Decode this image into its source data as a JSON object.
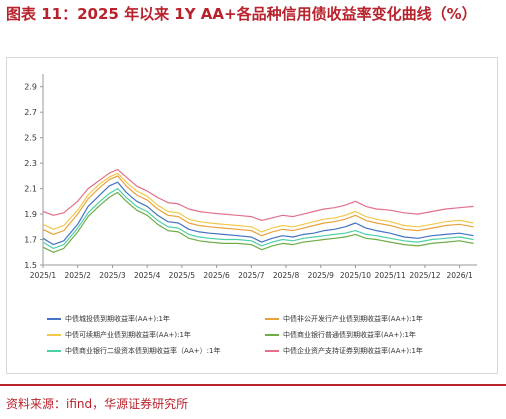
{
  "title": "图表 11：2025 年以来 1Y AA+各品种信用债收益率变化曲线（%）",
  "source": "资料来源：ifind，华源证券研究所",
  "chart_data": {
    "type": "line",
    "ylim": [
      1.5,
      3.0
    ],
    "yticks": [
      "1.5",
      "1.7",
      "1.9",
      "2.1",
      "2.3",
      "2.5",
      "2.7",
      "2.9"
    ],
    "xticks": [
      "2025/1",
      "2025/2",
      "2025/3",
      "2025/4",
      "2025/5",
      "2025/6",
      "2025/7",
      "2025/8",
      "2025/9",
      "2025/10",
      "2025/11",
      "2025/12",
      "2026/1"
    ],
    "x_range_months": [
      0,
      12.5
    ],
    "grid": false,
    "legend_position": "bottom",
    "series": [
      {
        "name": "中债城投债到期收益率(AA+):1年",
        "color": "#4472c4",
        "points": [
          [
            0,
            1.71
          ],
          [
            0.3,
            1.66
          ],
          [
            0.6,
            1.69
          ],
          [
            1.0,
            1.82
          ],
          [
            1.3,
            1.96
          ],
          [
            1.6,
            2.04
          ],
          [
            1.9,
            2.12
          ],
          [
            2.15,
            2.15
          ],
          [
            2.4,
            2.07
          ],
          [
            2.7,
            2.0
          ],
          [
            3.0,
            1.96
          ],
          [
            3.3,
            1.89
          ],
          [
            3.6,
            1.84
          ],
          [
            3.9,
            1.83
          ],
          [
            4.2,
            1.78
          ],
          [
            4.5,
            1.76
          ],
          [
            4.8,
            1.75
          ],
          [
            5.2,
            1.74
          ],
          [
            5.6,
            1.73
          ],
          [
            6.0,
            1.72
          ],
          [
            6.3,
            1.68
          ],
          [
            6.6,
            1.71
          ],
          [
            6.9,
            1.73
          ],
          [
            7.2,
            1.72
          ],
          [
            7.5,
            1.74
          ],
          [
            7.8,
            1.75
          ],
          [
            8.1,
            1.77
          ],
          [
            8.4,
            1.78
          ],
          [
            8.7,
            1.8
          ],
          [
            9.0,
            1.83
          ],
          [
            9.3,
            1.79
          ],
          [
            9.6,
            1.77
          ],
          [
            10.0,
            1.75
          ],
          [
            10.4,
            1.72
          ],
          [
            10.8,
            1.71
          ],
          [
            11.2,
            1.73
          ],
          [
            11.6,
            1.74
          ],
          [
            12.0,
            1.75
          ],
          [
            12.4,
            1.73
          ]
        ]
      },
      {
        "name": "中债非公开发行产业债到期收益率(AA+):1年",
        "color": "#e8a33c",
        "points": [
          [
            0,
            1.78
          ],
          [
            0.3,
            1.74
          ],
          [
            0.6,
            1.77
          ],
          [
            1.0,
            1.9
          ],
          [
            1.3,
            2.02
          ],
          [
            1.6,
            2.1
          ],
          [
            1.9,
            2.17
          ],
          [
            2.15,
            2.2
          ],
          [
            2.4,
            2.12
          ],
          [
            2.7,
            2.05
          ],
          [
            3.0,
            2.01
          ],
          [
            3.3,
            1.94
          ],
          [
            3.6,
            1.89
          ],
          [
            3.9,
            1.88
          ],
          [
            4.2,
            1.83
          ],
          [
            4.5,
            1.81
          ],
          [
            4.8,
            1.8
          ],
          [
            5.2,
            1.79
          ],
          [
            5.6,
            1.78
          ],
          [
            6.0,
            1.77
          ],
          [
            6.3,
            1.73
          ],
          [
            6.6,
            1.76
          ],
          [
            6.9,
            1.78
          ],
          [
            7.2,
            1.77
          ],
          [
            7.5,
            1.79
          ],
          [
            7.8,
            1.81
          ],
          [
            8.1,
            1.83
          ],
          [
            8.4,
            1.84
          ],
          [
            8.7,
            1.86
          ],
          [
            9.0,
            1.89
          ],
          [
            9.3,
            1.85
          ],
          [
            9.6,
            1.83
          ],
          [
            10.0,
            1.81
          ],
          [
            10.4,
            1.78
          ],
          [
            10.8,
            1.77
          ],
          [
            11.2,
            1.79
          ],
          [
            11.6,
            1.81
          ],
          [
            12.0,
            1.82
          ],
          [
            12.4,
            1.8
          ]
        ]
      },
      {
        "name": "中债可续期产业债到期收益率(AA+):1年",
        "color": "#f2c94c",
        "points": [
          [
            0,
            1.82
          ],
          [
            0.3,
            1.78
          ],
          [
            0.6,
            1.81
          ],
          [
            1.0,
            1.93
          ],
          [
            1.3,
            2.05
          ],
          [
            1.6,
            2.13
          ],
          [
            1.9,
            2.19
          ],
          [
            2.15,
            2.22
          ],
          [
            2.4,
            2.15
          ],
          [
            2.7,
            2.08
          ],
          [
            3.0,
            2.04
          ],
          [
            3.3,
            1.97
          ],
          [
            3.6,
            1.92
          ],
          [
            3.9,
            1.91
          ],
          [
            4.2,
            1.86
          ],
          [
            4.5,
            1.84
          ],
          [
            4.8,
            1.83
          ],
          [
            5.2,
            1.82
          ],
          [
            5.6,
            1.81
          ],
          [
            6.0,
            1.8
          ],
          [
            6.3,
            1.76
          ],
          [
            6.6,
            1.79
          ],
          [
            6.9,
            1.81
          ],
          [
            7.2,
            1.8
          ],
          [
            7.5,
            1.82
          ],
          [
            7.8,
            1.84
          ],
          [
            8.1,
            1.86
          ],
          [
            8.4,
            1.87
          ],
          [
            8.7,
            1.89
          ],
          [
            9.0,
            1.92
          ],
          [
            9.3,
            1.88
          ],
          [
            9.6,
            1.86
          ],
          [
            10.0,
            1.84
          ],
          [
            10.4,
            1.81
          ],
          [
            10.8,
            1.8
          ],
          [
            11.2,
            1.82
          ],
          [
            11.6,
            1.84
          ],
          [
            12.0,
            1.85
          ],
          [
            12.4,
            1.83
          ]
        ]
      },
      {
        "name": "中债商业银行普通债到期收益率(AA+):1年",
        "color": "#70ad47",
        "points": [
          [
            0,
            1.64
          ],
          [
            0.3,
            1.6
          ],
          [
            0.6,
            1.63
          ],
          [
            1.0,
            1.76
          ],
          [
            1.3,
            1.88
          ],
          [
            1.6,
            1.96
          ],
          [
            1.9,
            2.03
          ],
          [
            2.15,
            2.07
          ],
          [
            2.4,
            2.0
          ],
          [
            2.7,
            1.93
          ],
          [
            3.0,
            1.89
          ],
          [
            3.3,
            1.82
          ],
          [
            3.6,
            1.77
          ],
          [
            3.9,
            1.76
          ],
          [
            4.2,
            1.71
          ],
          [
            4.5,
            1.69
          ],
          [
            4.8,
            1.68
          ],
          [
            5.2,
            1.67
          ],
          [
            5.6,
            1.67
          ],
          [
            6.0,
            1.66
          ],
          [
            6.3,
            1.62
          ],
          [
            6.6,
            1.65
          ],
          [
            6.9,
            1.67
          ],
          [
            7.2,
            1.66
          ],
          [
            7.5,
            1.68
          ],
          [
            7.8,
            1.69
          ],
          [
            8.1,
            1.7
          ],
          [
            8.4,
            1.71
          ],
          [
            8.7,
            1.72
          ],
          [
            9.0,
            1.74
          ],
          [
            9.3,
            1.71
          ],
          [
            9.6,
            1.7
          ],
          [
            10.0,
            1.68
          ],
          [
            10.4,
            1.66
          ],
          [
            10.8,
            1.65
          ],
          [
            11.2,
            1.67
          ],
          [
            11.6,
            1.68
          ],
          [
            12.0,
            1.69
          ],
          [
            12.4,
            1.67
          ]
        ]
      },
      {
        "name": "中债商业银行二级资本债到期收益率（AA+）:1年",
        "color": "#4dd0a8",
        "points": [
          [
            0,
            1.68
          ],
          [
            0.3,
            1.63
          ],
          [
            0.6,
            1.66
          ],
          [
            1.0,
            1.79
          ],
          [
            1.3,
            1.91
          ],
          [
            1.6,
            1.99
          ],
          [
            1.9,
            2.06
          ],
          [
            2.15,
            2.1
          ],
          [
            2.4,
            2.03
          ],
          [
            2.7,
            1.96
          ],
          [
            3.0,
            1.92
          ],
          [
            3.3,
            1.85
          ],
          [
            3.6,
            1.8
          ],
          [
            3.9,
            1.79
          ],
          [
            4.2,
            1.74
          ],
          [
            4.5,
            1.72
          ],
          [
            4.8,
            1.71
          ],
          [
            5.2,
            1.7
          ],
          [
            5.6,
            1.7
          ],
          [
            6.0,
            1.69
          ],
          [
            6.3,
            1.65
          ],
          [
            6.6,
            1.68
          ],
          [
            6.9,
            1.7
          ],
          [
            7.2,
            1.69
          ],
          [
            7.5,
            1.71
          ],
          [
            7.8,
            1.72
          ],
          [
            8.1,
            1.73
          ],
          [
            8.4,
            1.74
          ],
          [
            8.7,
            1.75
          ],
          [
            9.0,
            1.77
          ],
          [
            9.3,
            1.74
          ],
          [
            9.6,
            1.73
          ],
          [
            10.0,
            1.71
          ],
          [
            10.4,
            1.69
          ],
          [
            10.8,
            1.68
          ],
          [
            11.2,
            1.7
          ],
          [
            11.6,
            1.71
          ],
          [
            12.0,
            1.72
          ],
          [
            12.4,
            1.7
          ]
        ]
      },
      {
        "name": "中债企业资产支持证券到期收益率(AA+):1年",
        "color": "#e2708a",
        "points": [
          [
            0,
            1.92
          ],
          [
            0.3,
            1.89
          ],
          [
            0.6,
            1.91
          ],
          [
            1.0,
            2.0
          ],
          [
            1.3,
            2.1
          ],
          [
            1.6,
            2.16
          ],
          [
            1.9,
            2.22
          ],
          [
            2.15,
            2.25
          ],
          [
            2.4,
            2.19
          ],
          [
            2.7,
            2.12
          ],
          [
            3.0,
            2.08
          ],
          [
            3.3,
            2.03
          ],
          [
            3.6,
            1.99
          ],
          [
            3.9,
            1.98
          ],
          [
            4.2,
            1.94
          ],
          [
            4.5,
            1.92
          ],
          [
            4.8,
            1.91
          ],
          [
            5.2,
            1.9
          ],
          [
            5.6,
            1.89
          ],
          [
            6.0,
            1.88
          ],
          [
            6.3,
            1.85
          ],
          [
            6.6,
            1.87
          ],
          [
            6.9,
            1.89
          ],
          [
            7.2,
            1.88
          ],
          [
            7.5,
            1.9
          ],
          [
            7.8,
            1.92
          ],
          [
            8.1,
            1.94
          ],
          [
            8.4,
            1.95
          ],
          [
            8.7,
            1.97
          ],
          [
            9.0,
            2.0
          ],
          [
            9.3,
            1.96
          ],
          [
            9.6,
            1.94
          ],
          [
            10.0,
            1.93
          ],
          [
            10.4,
            1.91
          ],
          [
            10.8,
            1.9
          ],
          [
            11.2,
            1.92
          ],
          [
            11.6,
            1.94
          ],
          [
            12.0,
            1.95
          ],
          [
            12.4,
            1.96
          ]
        ]
      }
    ]
  }
}
